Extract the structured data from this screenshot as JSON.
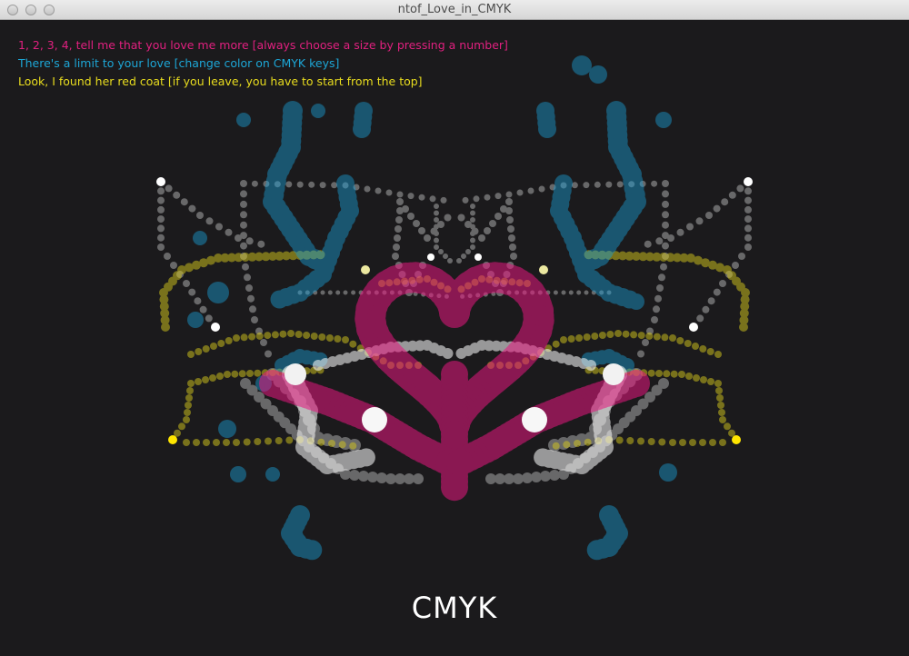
{
  "window": {
    "title": "ntof_Love_in_CMYK"
  },
  "instructions": [
    {
      "text": "1, 2, 3, 4, tell me that you love me more [always choose a size by pressing a number]",
      "color": "#e0207f"
    },
    {
      "text": "There's a limit to your love [change color on CMYK keys]",
      "color": "#1da6d6"
    },
    {
      "text": "Look, I found her red coat [if you leave, you have to start from the top]",
      "color": "#e8dc1e"
    }
  ],
  "colors": {
    "background": "#1b1a1c",
    "magenta": "#e6177f",
    "cyan": "#1a9fd6",
    "yellow": "#d6c91c",
    "white": "#ffffff"
  },
  "label": "CMYK"
}
